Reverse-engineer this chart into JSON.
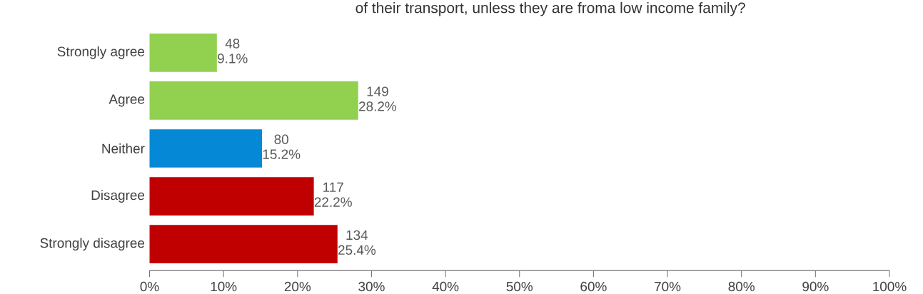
{
  "chart_data": {
    "type": "bar",
    "orientation": "horizontal",
    "title": "of their transport, unless they are froma low income family?",
    "categories": [
      "Strongly agree",
      "Agree",
      "Neither",
      "Disagree",
      "Strongly disagree"
    ],
    "values": [
      9.1,
      28.2,
      15.2,
      22.2,
      25.4
    ],
    "colors": [
      "#92d050",
      "#92d050",
      "#0589d6",
      "#c00000",
      "#c00000"
    ],
    "value_labels": [
      "9.1%",
      "28.2%",
      "15.2%",
      "22.2%",
      "25.4%"
    ],
    "annotations": [
      {
        "text": "48",
        "x": 9.1,
        "y": "Strongly agree"
      },
      {
        "text": "149",
        "x": 28.2,
        "y": "Agree"
      },
      {
        "text": "80",
        "x": 15.2,
        "y": "Neither"
      },
      {
        "text": "117",
        "x": 22.2,
        "y": "Disagree"
      },
      {
        "text": "134",
        "x": 25.4,
        "y": "Strongly disagree"
      }
    ],
    "xlim": [
      0,
      100
    ],
    "xticks": [
      {
        "value": 0,
        "label": "0%"
      },
      {
        "value": 10,
        "label": "10%"
      },
      {
        "value": 20,
        "label": "20%"
      },
      {
        "value": 30,
        "label": "30%"
      },
      {
        "value": 40,
        "label": "40%"
      },
      {
        "value": 50,
        "label": "50%"
      },
      {
        "value": 60,
        "label": "60%"
      },
      {
        "value": 70,
        "label": "70%"
      },
      {
        "value": 80,
        "label": "80%"
      },
      {
        "value": 90,
        "label": "90%"
      },
      {
        "value": 100,
        "label": "100%"
      }
    ],
    "grid": false
  }
}
